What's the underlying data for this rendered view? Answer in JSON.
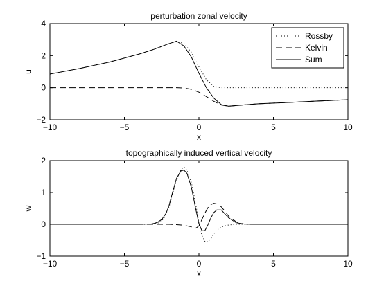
{
  "chart_data": [
    {
      "type": "line",
      "title": "perturbation zonal velocity",
      "xlabel": "x",
      "ylabel": "u",
      "xlim": [
        -10,
        10
      ],
      "ylim": [
        -2,
        4
      ],
      "xticks": [
        -10,
        -5,
        0,
        5,
        10
      ],
      "yticks": [
        -2,
        0,
        2,
        4
      ],
      "xtick_labels": [
        "−10",
        "−5",
        "0",
        "5",
        "10"
      ],
      "ytick_labels": [
        "−2",
        "0",
        "2",
        "4"
      ],
      "grid": false,
      "legend_position": "top-right",
      "series": [
        {
          "name": "Rossby",
          "style": "dotted",
          "x": [
            -10,
            -8,
            -6,
            -4,
            -3,
            -2,
            -1.5,
            -1,
            -0.5,
            0,
            0.5,
            1,
            1.5,
            2,
            3,
            4,
            6,
            8,
            10
          ],
          "y": [
            0.85,
            1.2,
            1.6,
            2.1,
            2.4,
            2.75,
            2.9,
            2.75,
            2.2,
            1.3,
            0.5,
            0.08,
            0,
            0,
            0,
            0,
            0,
            0,
            0
          ]
        },
        {
          "name": "Kelvin",
          "style": "dashed",
          "x": [
            -10,
            -8,
            -6,
            -4,
            -3,
            -2,
            -1.5,
            -1,
            -0.5,
            0,
            0.5,
            1,
            1.5,
            2,
            3,
            4,
            6,
            8,
            10
          ],
          "y": [
            0,
            0,
            0,
            0,
            0,
            0,
            0,
            -0.02,
            -0.1,
            -0.28,
            -0.55,
            -0.85,
            -1.08,
            -1.15,
            -1.07,
            -1.0,
            -0.92,
            -0.83,
            -0.75
          ]
        },
        {
          "name": "Sum",
          "style": "solid",
          "x": [
            -10,
            -8,
            -6,
            -4,
            -3,
            -2,
            -1.5,
            -1,
            -0.5,
            0,
            0.5,
            1,
            1.5,
            2,
            3,
            4,
            6,
            8,
            10
          ],
          "y": [
            0.85,
            1.2,
            1.6,
            2.1,
            2.4,
            2.75,
            2.9,
            2.6,
            1.9,
            0.9,
            0.0,
            -0.65,
            -1.05,
            -1.15,
            -1.07,
            -1.0,
            -0.92,
            -0.83,
            -0.75
          ]
        }
      ]
    },
    {
      "type": "line",
      "title": "topographically induced vertical velocity",
      "xlabel": "x",
      "ylabel": "w",
      "xlim": [
        -10,
        10
      ],
      "ylim": [
        -1,
        2
      ],
      "xticks": [
        -10,
        -5,
        0,
        5,
        10
      ],
      "yticks": [
        -1,
        0,
        1,
        2
      ],
      "xtick_labels": [
        "−10",
        "−5",
        "0",
        "5",
        "10"
      ],
      "ytick_labels": [
        "−1",
        "0",
        "1",
        "2"
      ],
      "grid": false,
      "series": [
        {
          "name": "Rossby",
          "style": "dotted",
          "x": [
            -10,
            -4,
            -3.2,
            -3,
            -2.8,
            -2.5,
            -2.2,
            -2,
            -1.8,
            -1.5,
            -1.2,
            -1,
            -0.8,
            -0.5,
            -0.2,
            0,
            0.2,
            0.4,
            0.6,
            0.8,
            1.0,
            1.2,
            1.5,
            2,
            2.5,
            3,
            3.5,
            4,
            10
          ],
          "y": [
            0,
            0,
            0,
            0.01,
            0.03,
            0.1,
            0.3,
            0.55,
            0.9,
            1.4,
            1.72,
            1.8,
            1.7,
            1.3,
            0.6,
            0.05,
            -0.35,
            -0.53,
            -0.55,
            -0.45,
            -0.3,
            -0.18,
            -0.08,
            -0.02,
            0,
            0,
            0,
            0,
            0
          ]
        },
        {
          "name": "Kelvin",
          "style": "dashed",
          "x": [
            -10,
            -4,
            -2,
            -1.5,
            -1,
            -0.5,
            -0.2,
            0,
            0.2,
            0.4,
            0.6,
            0.8,
            1.0,
            1.2,
            1.5,
            1.8,
            2,
            2.5,
            3,
            3.5,
            4,
            10
          ],
          "y": [
            0,
            0,
            0,
            -0.01,
            -0.03,
            -0.08,
            -0.12,
            -0.05,
            0.15,
            0.35,
            0.52,
            0.62,
            0.66,
            0.64,
            0.55,
            0.38,
            0.25,
            0.08,
            0.01,
            0,
            0,
            0
          ]
        },
        {
          "name": "Sum",
          "style": "solid",
          "x": [
            -10,
            -4,
            -3.2,
            -3,
            -2.8,
            -2.5,
            -2.2,
            -2,
            -1.8,
            -1.5,
            -1.2,
            -1,
            -0.8,
            -0.5,
            -0.2,
            0,
            0.2,
            0.4,
            0.6,
            0.8,
            1.0,
            1.2,
            1.5,
            1.8,
            2,
            2.5,
            3,
            3.5,
            4,
            10
          ],
          "y": [
            0,
            0,
            0.01,
            0.03,
            0.06,
            0.15,
            0.35,
            0.6,
            0.95,
            1.45,
            1.68,
            1.7,
            1.6,
            1.15,
            0.45,
            0.02,
            -0.2,
            -0.2,
            -0.02,
            0.2,
            0.37,
            0.45,
            0.45,
            0.3,
            0.2,
            0.05,
            0.01,
            0,
            0,
            0
          ]
        }
      ]
    }
  ]
}
